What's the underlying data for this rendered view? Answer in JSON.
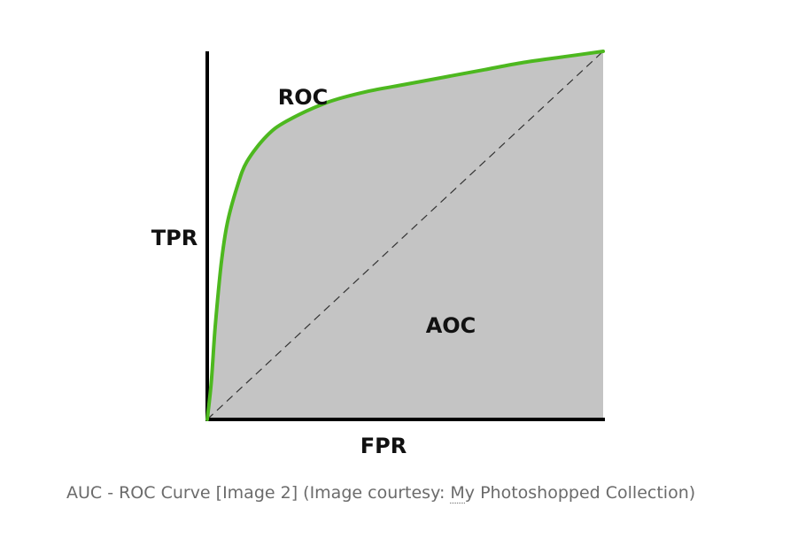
{
  "chart_data": {
    "type": "area",
    "title": "",
    "xlabel": "FPR",
    "ylabel": "TPR",
    "xlim": [
      0,
      1
    ],
    "ylim": [
      0,
      1
    ],
    "grid": false,
    "curve_label": "ROC",
    "area_label": "AOC",
    "roc_points": [
      {
        "x": 0.0,
        "y": 0.0
      },
      {
        "x": 0.01,
        "y": 0.1
      },
      {
        "x": 0.02,
        "y": 0.25
      },
      {
        "x": 0.035,
        "y": 0.42
      },
      {
        "x": 0.05,
        "y": 0.53
      },
      {
        "x": 0.075,
        "y": 0.63
      },
      {
        "x": 0.1,
        "y": 0.7
      },
      {
        "x": 0.15,
        "y": 0.77
      },
      {
        "x": 0.2,
        "y": 0.81
      },
      {
        "x": 0.3,
        "y": 0.86
      },
      {
        "x": 0.4,
        "y": 0.89
      },
      {
        "x": 0.5,
        "y": 0.91
      },
      {
        "x": 0.6,
        "y": 0.93
      },
      {
        "x": 0.7,
        "y": 0.95
      },
      {
        "x": 0.8,
        "y": 0.97
      },
      {
        "x": 0.9,
        "y": 0.985
      },
      {
        "x": 1.0,
        "y": 1.0
      }
    ],
    "diagonal": [
      {
        "x": 0,
        "y": 0
      },
      {
        "x": 1,
        "y": 1
      }
    ],
    "colors": {
      "roc_curve": "#4db81f",
      "area_fill": "#c4c4c4",
      "axes": "#000000",
      "diagonal": "#333333"
    }
  },
  "caption": {
    "prefix": "AUC - ROC Curve [Image 2] (Image courtesy: ",
    "abbr": "M",
    "suffix": "y Photoshopped Collection)"
  }
}
